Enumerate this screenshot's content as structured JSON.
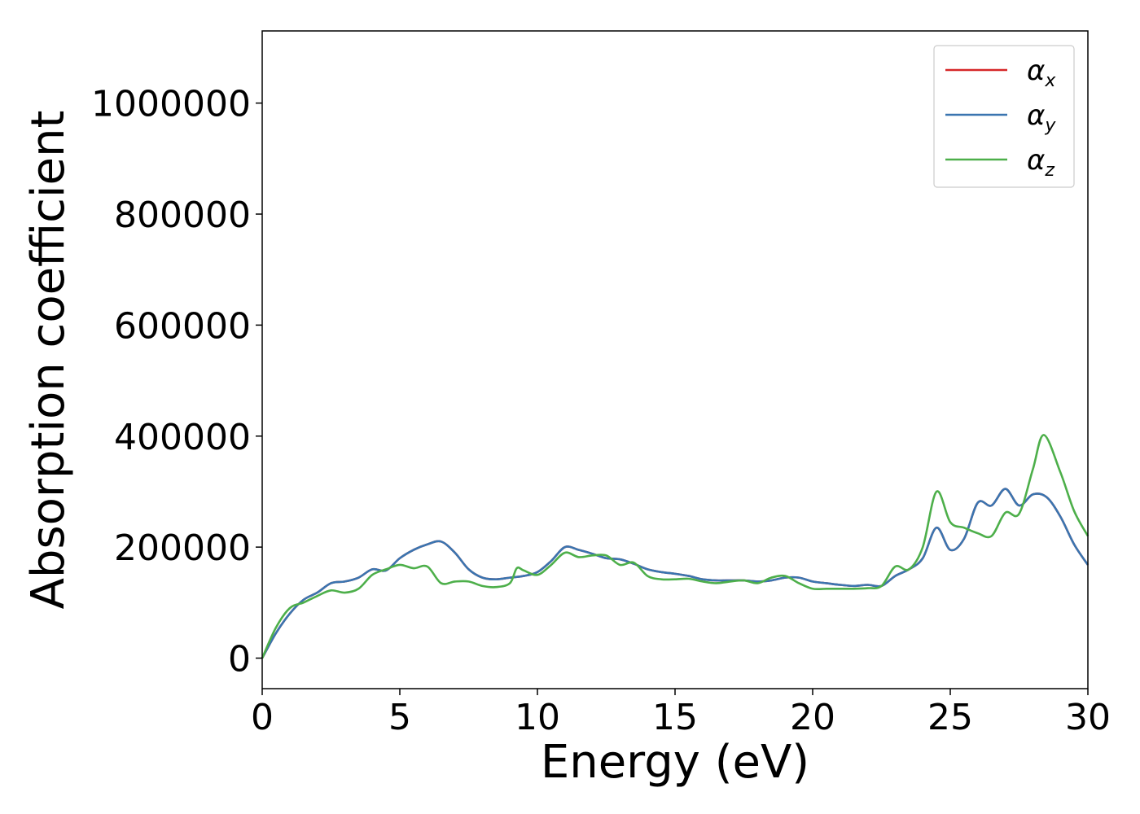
{
  "chart_data": {
    "type": "line",
    "title": "",
    "xlabel": "Energy (eV)",
    "ylabel": "Absorption coefficient",
    "xlim": [
      0,
      30
    ],
    "ylim": [
      -55000,
      1130000
    ],
    "xticks": [
      0,
      5,
      10,
      15,
      20,
      25,
      30
    ],
    "yticks": [
      0,
      200000,
      400000,
      600000,
      800000,
      1000000
    ],
    "xtick_labels": [
      "0",
      "5",
      "10",
      "15",
      "20",
      "25",
      "30"
    ],
    "ytick_labels": [
      "0",
      "200000",
      "400000",
      "600000",
      "800000",
      "1000000"
    ],
    "grid": false,
    "legend_position": "top-right",
    "series": [
      {
        "name": "α",
        "sub": "x",
        "color": "#d62728",
        "x": [
          0,
          0.5,
          1,
          1.5,
          2,
          2.5,
          3,
          3.5,
          4,
          4.5,
          5,
          5.5,
          6,
          6.5,
          7,
          7.5,
          8,
          8.5,
          9,
          9.5,
          10,
          10.5,
          11,
          11.5,
          12,
          12.5,
          13,
          13.5,
          14,
          14.5,
          15,
          15.5,
          16,
          16.5,
          17,
          17.5,
          18,
          18.5,
          19,
          19.5,
          20,
          20.5,
          21,
          21.5,
          22,
          22.5,
          23,
          23.5,
          24,
          24.5,
          25,
          25.5,
          26,
          26.5,
          27,
          27.5,
          28,
          28.5,
          29,
          29.5,
          30
        ],
        "y": [
          0,
          45000,
          80000,
          105000,
          118000,
          135000,
          138000,
          145000,
          160000,
          158000,
          180000,
          195000,
          205000,
          210000,
          190000,
          160000,
          145000,
          142000,
          145000,
          148000,
          155000,
          175000,
          200000,
          195000,
          188000,
          180000,
          178000,
          170000,
          160000,
          155000,
          152000,
          148000,
          142000,
          140000,
          140000,
          140000,
          138000,
          140000,
          145000,
          145000,
          138000,
          135000,
          132000,
          130000,
          132000,
          130000,
          148000,
          160000,
          180000,
          235000,
          195000,
          215000,
          280000,
          275000,
          305000,
          275000,
          295000,
          290000,
          255000,
          205000,
          168000
        ]
      },
      {
        "name": "α",
        "sub": "y",
        "color": "#3a75b0",
        "x": [
          0,
          0.5,
          1,
          1.5,
          2,
          2.5,
          3,
          3.5,
          4,
          4.5,
          5,
          5.5,
          6,
          6.5,
          7,
          7.5,
          8,
          8.5,
          9,
          9.5,
          10,
          10.5,
          11,
          11.5,
          12,
          12.5,
          13,
          13.5,
          14,
          14.5,
          15,
          15.5,
          16,
          16.5,
          17,
          17.5,
          18,
          18.5,
          19,
          19.5,
          20,
          20.5,
          21,
          21.5,
          22,
          22.5,
          23,
          23.5,
          24,
          24.5,
          25,
          25.5,
          26,
          26.5,
          27,
          27.5,
          28,
          28.5,
          29,
          29.5,
          30
        ],
        "y": [
          0,
          45000,
          80000,
          105000,
          118000,
          135000,
          138000,
          145000,
          160000,
          158000,
          180000,
          195000,
          205000,
          210000,
          190000,
          160000,
          145000,
          142000,
          145000,
          148000,
          155000,
          175000,
          200000,
          195000,
          188000,
          180000,
          178000,
          170000,
          160000,
          155000,
          152000,
          148000,
          142000,
          140000,
          140000,
          140000,
          138000,
          140000,
          145000,
          145000,
          138000,
          135000,
          132000,
          130000,
          132000,
          130000,
          148000,
          160000,
          180000,
          235000,
          195000,
          215000,
          280000,
          275000,
          305000,
          275000,
          295000,
          290000,
          255000,
          205000,
          168000
        ]
      },
      {
        "name": "α",
        "sub": "z",
        "color": "#4daf4a",
        "x": [
          0,
          0.5,
          1,
          1.5,
          2,
          2.5,
          3,
          3.5,
          4,
          4.5,
          5,
          5.5,
          6,
          6.5,
          7,
          7.5,
          8,
          8.5,
          9,
          9.25,
          9.5,
          10,
          10.5,
          11,
          11.5,
          12,
          12.5,
          13,
          13.5,
          14,
          14.5,
          15,
          15.5,
          16,
          16.5,
          17,
          17.5,
          18,
          18.5,
          19,
          19.5,
          20,
          20.5,
          21,
          21.5,
          22,
          22.5,
          23,
          23.5,
          24,
          24.5,
          25,
          25.5,
          26,
          26.5,
          27,
          27.5,
          28,
          28.4,
          29,
          29.5,
          30
        ],
        "y": [
          0,
          55000,
          90000,
          100000,
          112000,
          122000,
          118000,
          125000,
          150000,
          160000,
          168000,
          162000,
          165000,
          135000,
          138000,
          138000,
          130000,
          128000,
          135000,
          162000,
          158000,
          150000,
          168000,
          190000,
          182000,
          185000,
          185000,
          168000,
          172000,
          148000,
          142000,
          142000,
          143000,
          138000,
          135000,
          138000,
          140000,
          135000,
          145000,
          148000,
          135000,
          125000,
          125000,
          125000,
          125000,
          126000,
          130000,
          165000,
          160000,
          200000,
          300000,
          245000,
          235000,
          225000,
          220000,
          262000,
          260000,
          340000,
          402000,
          335000,
          265000,
          220000
        ]
      }
    ]
  }
}
